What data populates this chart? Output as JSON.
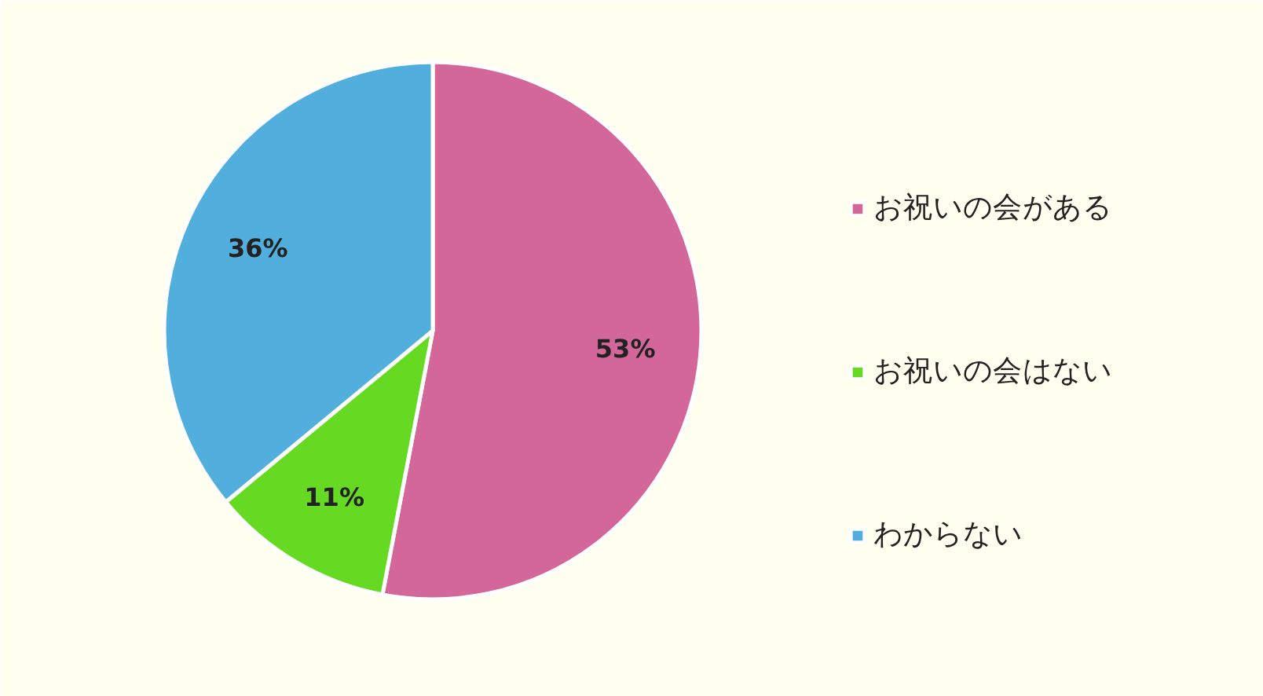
{
  "chart_data": {
    "type": "pie",
    "categories": [
      "お祝いの会がある",
      "お祝いの会はない",
      "わからない"
    ],
    "values": [
      53,
      11,
      36
    ],
    "colors": [
      "#d4679a",
      "#66d922",
      "#52afdd"
    ],
    "value_labels": [
      "53%",
      "11%",
      "36%"
    ],
    "legend": "right"
  }
}
